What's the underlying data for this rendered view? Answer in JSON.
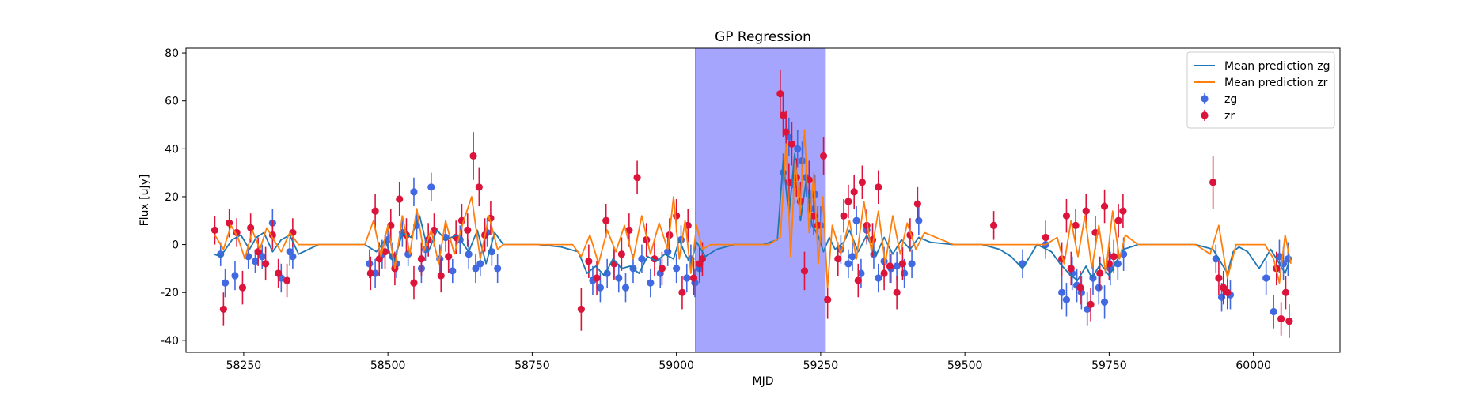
{
  "chart_data": {
    "type": "scatter",
    "title": "GP Regression",
    "xlabel": "MJD",
    "ylabel": "Flux [uJy]",
    "xlim": [
      58150,
      60150
    ],
    "ylim": [
      -45,
      82
    ],
    "xticks": [
      58250,
      58500,
      58750,
      59000,
      59250,
      59500,
      59750,
      60000
    ],
    "yticks": [
      -40,
      -20,
      0,
      20,
      40,
      60,
      80
    ],
    "grid": false,
    "legend_position": "top-right",
    "shaded_region": {
      "x_start": 59033,
      "x_end": 59258,
      "color": "#a5a5fd"
    },
    "series": [
      {
        "name": "Mean prediction zg",
        "kind": "line",
        "color": "#1f77b4",
        "x": [
          58198,
          58210,
          58230,
          58245,
          58260,
          58272,
          58285,
          58300,
          58315,
          58330,
          58345,
          58380,
          58460,
          58480,
          58495,
          58510,
          58525,
          58540,
          58555,
          58570,
          58585,
          58600,
          58620,
          58640,
          58655,
          58670,
          58685,
          58700,
          58760,
          58800,
          58830,
          58845,
          58860,
          58875,
          58890,
          58905,
          58920,
          58935,
          58950,
          58965,
          58980,
          58995,
          59005,
          59015,
          59025,
          59035,
          59050,
          59070,
          59100,
          59150,
          59175,
          59185,
          59195,
          59205,
          59215,
          59225,
          59235,
          59245,
          59255,
          59265,
          59275,
          59290,
          59300,
          59315,
          59330,
          59345,
          59360,
          59375,
          59390,
          59405,
          59420,
          59440,
          59480,
          59530,
          59560,
          59580,
          59600,
          59625,
          59650,
          59665,
          59680,
          59695,
          59710,
          59720,
          59735,
          59750,
          59765,
          59775,
          59800,
          59900,
          59930,
          59945,
          59955,
          59965,
          59975,
          59990,
          60010,
          60030,
          60045,
          60055,
          60065
        ],
        "y": [
          -4,
          -5,
          2,
          4,
          -2,
          3,
          5,
          -3,
          2,
          4,
          -4,
          0,
          0,
          -3,
          2,
          -8,
          5,
          3,
          12,
          -3,
          6,
          2,
          4,
          -3,
          6,
          -8,
          5,
          0,
          0,
          -1,
          -3,
          -12,
          -9,
          -13,
          -6,
          -10,
          -9,
          -12,
          -5,
          -7,
          -4,
          -6,
          2,
          -4,
          -8,
          1,
          -5,
          -2,
          0,
          0,
          2,
          35,
          12,
          38,
          10,
          27,
          8,
          4,
          -3,
          3,
          -2,
          1,
          6,
          -3,
          4,
          -5,
          3,
          -4,
          2,
          -2,
          3,
          1,
          0,
          0,
          -2,
          -5,
          -10,
          0,
          -3,
          -8,
          -12,
          -15,
          -9,
          -14,
          -8,
          -13,
          -6,
          -2,
          0,
          0,
          -2,
          -8,
          -12,
          -3,
          -1,
          -3,
          -10,
          -2,
          -8,
          -12,
          -5
        ]
      },
      {
        "name": "Mean prediction zr",
        "kind": "line",
        "color": "#ff7f0e",
        "x": [
          58200,
          58215,
          58228,
          58240,
          58252,
          58265,
          58278,
          58290,
          58302,
          58315,
          58330,
          58345,
          58380,
          58460,
          58475,
          58488,
          58500,
          58512,
          58525,
          58538,
          58550,
          58562,
          58575,
          58588,
          58600,
          58615,
          58630,
          58645,
          58660,
          58675,
          58690,
          58700,
          58760,
          58820,
          58835,
          58850,
          58865,
          58880,
          58895,
          58910,
          58925,
          58940,
          58955,
          58970,
          58985,
          58995,
          59005,
          59015,
          59025,
          59035,
          59045,
          59060,
          59100,
          59160,
          59180,
          59190,
          59198,
          59206,
          59214,
          59222,
          59230,
          59238,
          59246,
          59254,
          59262,
          59270,
          59285,
          59300,
          59312,
          59325,
          59338,
          59350,
          59362,
          59375,
          59388,
          59400,
          59415,
          59430,
          59480,
          59530,
          59560,
          59600,
          59640,
          59660,
          59672,
          59684,
          59696,
          59708,
          59720,
          59732,
          59744,
          59756,
          59768,
          59778,
          59800,
          59900,
          59925,
          59940,
          59955,
          59970,
          60000,
          60020,
          60035,
          60045,
          60055,
          60065
        ],
        "y": [
          4,
          -2,
          8,
          3,
          -6,
          6,
          -2,
          7,
          2,
          -3,
          5,
          0,
          0,
          0,
          10,
          -5,
          8,
          -10,
          12,
          -4,
          15,
          -3,
          6,
          -8,
          10,
          -4,
          9,
          20,
          -6,
          12,
          -2,
          0,
          0,
          0,
          -5,
          4,
          -8,
          6,
          -3,
          8,
          -6,
          12,
          -4,
          9,
          -2,
          20,
          -6,
          10,
          -12,
          8,
          -2,
          0,
          0,
          0,
          3,
          42,
          -5,
          35,
          12,
          48,
          5,
          30,
          -8,
          20,
          -18,
          8,
          -4,
          10,
          -6,
          18,
          -3,
          14,
          -8,
          12,
          -4,
          9,
          -2,
          5,
          0,
          0,
          0,
          0,
          0,
          3,
          -8,
          10,
          -5,
          12,
          -10,
          8,
          -12,
          14,
          -6,
          4,
          0,
          0,
          -4,
          8,
          -14,
          0,
          0,
          0,
          -6,
          -16,
          4,
          -8
        ]
      },
      {
        "name": "zg",
        "kind": "errorbar",
        "color": "#4169e1",
        "x": [
          58210,
          58218,
          58235,
          58258,
          58270,
          58282,
          58300,
          58315,
          58330,
          58335,
          58468,
          58478,
          58490,
          58500,
          58508,
          58515,
          58525,
          58535,
          58545,
          58550,
          58558,
          58565,
          58575,
          58590,
          58600,
          58612,
          58625,
          58640,
          58652,
          58660,
          58672,
          58680,
          58690,
          58855,
          58868,
          58880,
          58892,
          58900,
          58912,
          58925,
          58940,
          58955,
          58972,
          58985,
          59000,
          59008,
          59018,
          59025,
          59032,
          59040,
          59185,
          59195,
          59203,
          59210,
          59218,
          59225,
          59232,
          59240,
          59250,
          59285,
          59298,
          59305,
          59312,
          59320,
          59330,
          59342,
          59350,
          59360,
          59372,
          59382,
          59395,
          59408,
          59420,
          59600,
          59640,
          59668,
          59676,
          59686,
          59694,
          59702,
          59712,
          59722,
          59732,
          59742,
          59752,
          59765,
          59775,
          59935,
          59945,
          59960,
          60022,
          60035,
          60045,
          60052,
          60060
        ],
        "y": [
          -4,
          -16,
          -13,
          -5,
          -7,
          -5,
          9,
          -14,
          -3,
          -5,
          -8,
          -12,
          -4,
          2,
          -5,
          -8,
          5,
          -4,
          22,
          8,
          -10,
          -2,
          24,
          -6,
          3,
          -11,
          2,
          -4,
          -10,
          -8,
          5,
          -3,
          -10,
          -15,
          -18,
          -12,
          -8,
          -14,
          -18,
          -10,
          -6,
          -16,
          -12,
          -3,
          -10,
          2,
          -14,
          -6,
          -16,
          -10,
          30,
          45,
          25,
          40,
          35,
          28,
          15,
          21,
          8,
          -2,
          -8,
          -5,
          10,
          -12,
          6,
          -4,
          -14,
          -7,
          -10,
          -9,
          -12,
          -8,
          10,
          -8,
          0,
          -20,
          -23,
          -12,
          -17,
          -20,
          -27,
          -14,
          -18,
          -24,
          -10,
          -8,
          -4,
          -6,
          -22,
          -21,
          -14,
          -28,
          -5,
          -8,
          -6
        ],
        "err": [
          5,
          6,
          6,
          5,
          5,
          5,
          6,
          6,
          6,
          5,
          6,
          6,
          6,
          5,
          6,
          6,
          6,
          5,
          6,
          6,
          6,
          5,
          6,
          6,
          6,
          5,
          6,
          6,
          6,
          5,
          6,
          6,
          6,
          6,
          6,
          6,
          6,
          6,
          6,
          6,
          6,
          6,
          6,
          6,
          6,
          6,
          6,
          6,
          6,
          6,
          8,
          8,
          8,
          8,
          8,
          8,
          8,
          8,
          8,
          6,
          6,
          6,
          6,
          6,
          6,
          6,
          6,
          6,
          6,
          6,
          6,
          6,
          6,
          6,
          6,
          7,
          7,
          7,
          7,
          7,
          7,
          7,
          7,
          7,
          7,
          7,
          7,
          6,
          6,
          6,
          7,
          7,
          7,
          7,
          7
        ],
        "marker": "o"
      },
      {
        "name": "zr",
        "kind": "errorbar",
        "color": "#dc143c",
        "x": [
          58200,
          58215,
          58225,
          58238,
          58248,
          58262,
          58275,
          58288,
          58300,
          58310,
          58325,
          58335,
          58470,
          58478,
          58485,
          58495,
          58505,
          58512,
          58520,
          58532,
          58545,
          58558,
          58570,
          58580,
          58592,
          58605,
          58618,
          58628,
          58638,
          58648,
          58658,
          58668,
          58678,
          58835,
          58848,
          58862,
          58878,
          58892,
          58905,
          58918,
          58932,
          58948,
          58962,
          58975,
          58988,
          59000,
          59010,
          59020,
          59030,
          59040,
          59045,
          59180,
          59185,
          59190,
          59195,
          59200,
          59208,
          59215,
          59222,
          59230,
          59238,
          59245,
          59255,
          59262,
          59280,
          59290,
          59298,
          59308,
          59315,
          59322,
          59330,
          59340,
          59350,
          59360,
          59370,
          59382,
          59392,
          59405,
          59418,
          59550,
          59640,
          59668,
          59676,
          59684,
          59692,
          59700,
          59710,
          59718,
          59726,
          59734,
          59742,
          59750,
          59758,
          59766,
          59774,
          59930,
          59940,
          59948,
          59955,
          60040,
          60048,
          60056,
          60062
        ],
        "y": [
          6,
          -27,
          9,
          5,
          -18,
          7,
          -3,
          -8,
          4,
          -12,
          -15,
          5,
          -12,
          14,
          -6,
          -3,
          8,
          -10,
          19,
          4,
          -16,
          -6,
          2,
          6,
          -13,
          -5,
          3,
          10,
          6,
          37,
          24,
          4,
          11,
          -27,
          -7,
          -14,
          10,
          -8,
          -4,
          6,
          28,
          2,
          -6,
          -10,
          4,
          12,
          -20,
          8,
          -14,
          -8,
          -6,
          63,
          54,
          47,
          26,
          42,
          28,
          18,
          -11,
          27,
          12,
          8,
          37,
          -23,
          -6,
          12,
          18,
          22,
          -15,
          26,
          8,
          2,
          24,
          -12,
          -9,
          -20,
          -8,
          4,
          17,
          8,
          3,
          -6,
          12,
          -10,
          8,
          -18,
          14,
          -25,
          5,
          -12,
          16,
          -8,
          -5,
          10,
          14,
          26,
          -14,
          -18,
          -20,
          -10,
          -31,
          -20,
          -32
        ],
        "err": [
          6,
          7,
          6,
          6,
          7,
          6,
          6,
          7,
          6,
          6,
          7,
          6,
          7,
          7,
          7,
          7,
          7,
          7,
          7,
          7,
          7,
          7,
          7,
          7,
          7,
          7,
          7,
          7,
          7,
          10,
          8,
          7,
          7,
          9,
          7,
          7,
          7,
          7,
          7,
          7,
          7,
          7,
          7,
          7,
          7,
          7,
          7,
          7,
          7,
          7,
          7,
          10,
          9,
          9,
          8,
          9,
          8,
          8,
          8,
          8,
          8,
          8,
          8,
          8,
          7,
          7,
          7,
          7,
          7,
          7,
          7,
          7,
          7,
          7,
          7,
          7,
          7,
          7,
          7,
          6,
          7,
          7,
          7,
          7,
          7,
          7,
          7,
          7,
          7,
          7,
          7,
          7,
          7,
          7,
          7,
          11,
          7,
          7,
          7,
          7,
          7,
          7,
          7
        ],
        "marker": "o"
      }
    ]
  }
}
